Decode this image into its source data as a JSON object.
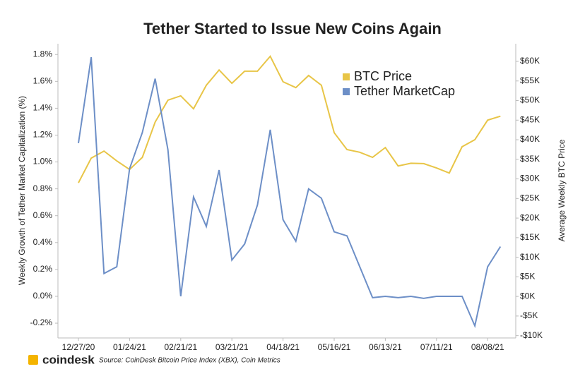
{
  "chart_data": {
    "type": "line",
    "title": "Tether Started to Issue New Coins Again",
    "ylabel": "Weekly Growth of Tether Market Capitalization (%)",
    "y2label": "Average Weekly BTC Price",
    "source": "Source: CoinDesk Bitcoin Price Index (XBX), Coin Metrics",
    "logo": "coindesk",
    "legend": "upper right",
    "categories": [
      "12/27/20",
      null,
      null,
      null,
      "01/24/21",
      null,
      null,
      null,
      "02/21/21",
      null,
      null,
      null,
      "03/21/21",
      null,
      null,
      null,
      "04/18/21",
      null,
      null,
      null,
      "05/16/21",
      null,
      null,
      null,
      "06/13/21",
      null,
      null,
      null,
      "07/11/21",
      null,
      null,
      null,
      "08/08/21",
      null
    ],
    "series": [
      {
        "name": "BTC Price",
        "color": "#e8c547",
        "axis": "y2",
        "values": [
          29,
          35.3,
          37.1,
          34.6,
          32.4,
          35.5,
          44.5,
          50.1,
          51.2,
          47.9,
          53.9,
          57.8,
          54.4,
          57.5,
          57.5,
          61.3,
          54.8,
          53.3,
          56.4,
          53.9,
          41.8,
          37.5,
          36.8,
          35.5,
          38,
          33.3,
          34,
          33.9,
          32.8,
          31.5,
          38.2,
          40,
          45,
          46
        ]
      },
      {
        "name": "Tether MarketCap",
        "color": "#6d8fc7",
        "values": [
          1.14,
          1.78,
          0.17,
          0.22,
          0.95,
          1.22,
          1.62,
          1.09,
          0.0,
          0.74,
          0.52,
          0.94,
          0.27,
          0.39,
          0.68,
          1.24,
          0.57,
          0.41,
          0.8,
          0.73,
          0.48,
          0.45,
          0.22,
          -0.01,
          0.0,
          -0.01,
          0.0,
          -0.015,
          0.0,
          0.0,
          0.0,
          -0.22,
          0.22,
          0.37
        ]
      }
    ],
    "ylim": [
      -0.31,
      1.88
    ],
    "yticks": [
      {
        "value": -0.2,
        "label": "-0.2%"
      },
      {
        "value": 0,
        "label": "0.0%"
      },
      {
        "value": 0.2,
        "label": "0.2%"
      },
      {
        "value": 0.4,
        "label": "0.4%"
      },
      {
        "value": 0.6,
        "label": "0.6%"
      },
      {
        "value": 0.8,
        "label": "0.8%"
      },
      {
        "value": 1.0,
        "label": "1.0%"
      },
      {
        "value": 1.2,
        "label": "1.2%"
      },
      {
        "value": 1.4,
        "label": "1.4%"
      },
      {
        "value": 1.6,
        "label": "1.6%"
      },
      {
        "value": 1.8,
        "label": "1.8%"
      }
    ],
    "y2lim": [
      -10.6,
      64.5
    ],
    "y2ticks": [
      {
        "value": -10,
        "label": "-$10K"
      },
      {
        "value": -5,
        "label": "-$5K"
      },
      {
        "value": 0,
        "label": "$0K"
      },
      {
        "value": 5,
        "label": "$5K"
      },
      {
        "value": 10,
        "label": "$10K"
      },
      {
        "value": 15,
        "label": "$15K"
      },
      {
        "value": 20,
        "label": "$20K"
      },
      {
        "value": 25,
        "label": "$25K"
      },
      {
        "value": 30,
        "label": "$30K"
      },
      {
        "value": 35,
        "label": "$35K"
      },
      {
        "value": 40,
        "label": "$40K"
      },
      {
        "value": 45,
        "label": "$45K"
      },
      {
        "value": 50,
        "label": "$50K"
      },
      {
        "value": 55,
        "label": "$55K"
      },
      {
        "value": 60,
        "label": "$60K"
      }
    ]
  }
}
